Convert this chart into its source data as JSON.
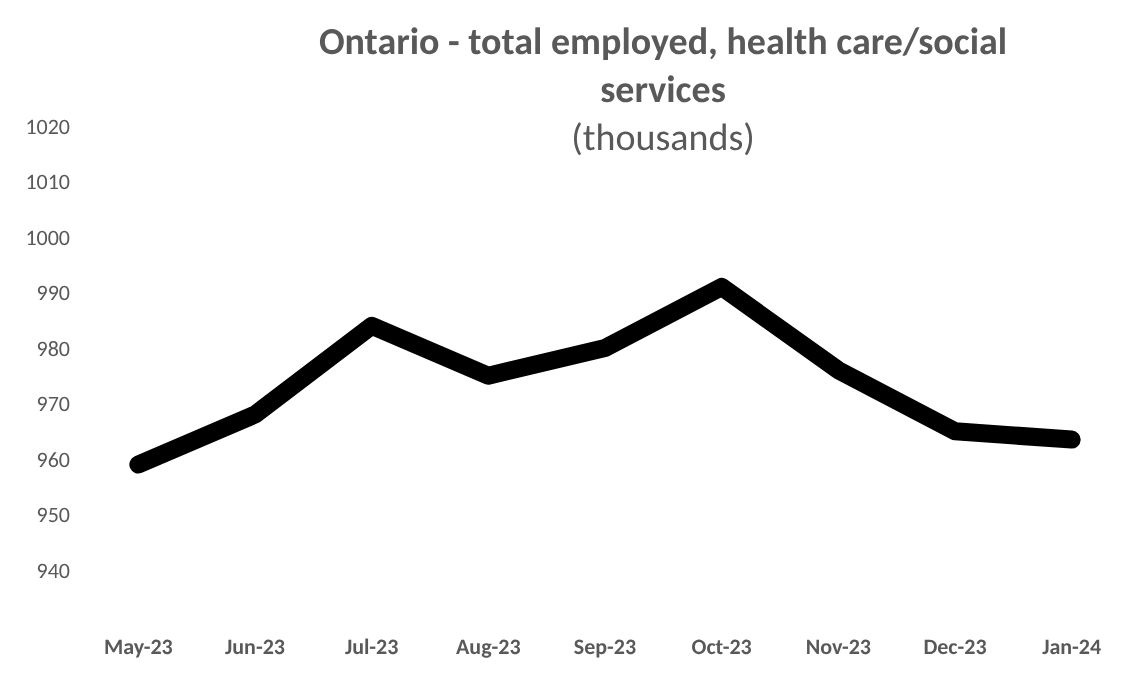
{
  "chart_data": {
    "type": "line",
    "title": "Ontario - total employed, health care/social services",
    "subtitle": "(thousands)",
    "categories": [
      "May-23",
      "Jun-23",
      "Jul-23",
      "Aug-23",
      "Sep-23",
      "Oct-23",
      "Nov-23",
      "Dec-23",
      "Jan-24"
    ],
    "series": [
      {
        "color": "#000000",
        "values": [
          959,
          968,
          984,
          975,
          980,
          991,
          976,
          965,
          963.5
        ]
      }
    ],
    "ylim": [
      940,
      1020
    ],
    "yticks": [
      940,
      950,
      960,
      970,
      980,
      990,
      1000,
      1010,
      1020
    ],
    "grid": false,
    "marker": "none",
    "line_style": "solid"
  }
}
